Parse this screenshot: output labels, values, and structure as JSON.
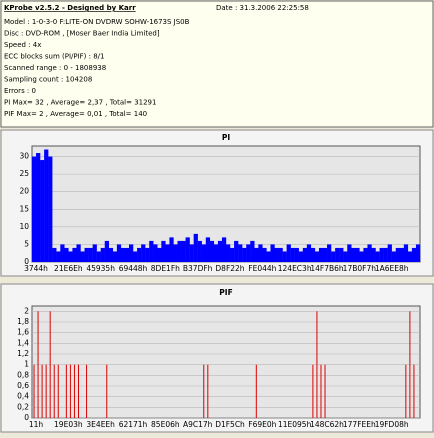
{
  "header": {
    "title": "KProbe v2.5.2 - Designed by Karr",
    "date": "Date : 31.3.2006 22:25:58",
    "lines": [
      "Model : 1-0-3-0 F:LITE-ON DVDRW SOHW-1673S JS0B",
      "Disc : DVD-ROM , [Moser Baer India Limited]",
      "Speed : 4x",
      "ECC blocks sum (PI/PIF) : 8/1",
      "Scanned range : 0 - 1808938",
      "Sampling count : 104208",
      "Errors : 0",
      "PI Max= 32 , Average= 2,37 , Total= 31291",
      "PIF Max= 2 , Average= 0,01 , Total= 140"
    ]
  },
  "chart_data": [
    {
      "type": "bar",
      "title": "PI",
      "color": "#0000ff",
      "grid": true,
      "ylim": [
        0,
        33
      ],
      "yticks": [
        0,
        5,
        10,
        15,
        20,
        25,
        30
      ],
      "categories": [
        "3744h",
        null,
        null,
        null,
        null,
        null,
        null,
        null,
        "21E6Eh",
        null,
        null,
        null,
        null,
        null,
        null,
        null,
        "45935h",
        null,
        null,
        null,
        null,
        null,
        null,
        null,
        "69448h",
        null,
        null,
        null,
        null,
        null,
        null,
        null,
        "8DE1Fh",
        null,
        null,
        null,
        null,
        null,
        null,
        null,
        "B37DFh",
        null,
        null,
        null,
        null,
        null,
        null,
        null,
        "D8F22h",
        null,
        null,
        null,
        null,
        null,
        null,
        null,
        "FE044h",
        null,
        null,
        null,
        null,
        null,
        null,
        null,
        "124EC3h",
        null,
        null,
        null,
        null,
        null,
        null,
        null,
        "14F7B6h",
        null,
        null,
        null,
        null,
        null,
        null,
        null,
        "17B0F7h",
        null,
        null,
        null,
        null,
        null,
        null,
        null,
        "1A6EE8h",
        null,
        null,
        null,
        null,
        null,
        null,
        null
      ],
      "values": [
        30,
        31,
        29,
        32,
        30,
        4,
        3,
        5,
        4,
        3,
        4,
        5,
        3,
        4,
        4,
        5,
        3,
        4,
        6,
        4,
        3,
        5,
        4,
        4,
        5,
        3,
        4,
        5,
        4,
        6,
        5,
        4,
        6,
        5,
        7,
        5,
        6,
        6,
        7,
        5,
        8,
        6,
        5,
        7,
        6,
        5,
        6,
        7,
        5,
        4,
        6,
        5,
        4,
        5,
        6,
        4,
        5,
        4,
        3,
        5,
        4,
        4,
        3,
        5,
        4,
        4,
        3,
        4,
        5,
        4,
        3,
        4,
        4,
        5,
        3,
        4,
        4,
        3,
        5,
        4,
        4,
        3,
        4,
        5,
        4,
        3,
        4,
        4,
        5,
        3,
        4,
        4,
        5,
        3,
        4,
        5
      ]
    },
    {
      "type": "bar",
      "title": "PIF",
      "color": "#dd0000",
      "grid": true,
      "ylim": [
        0,
        2.1
      ],
      "yticks": [
        0,
        {
          "value": 0.2,
          "label": "0,2"
        },
        {
          "value": 0.4,
          "label": "0,4"
        },
        {
          "value": 0.6,
          "label": "0,6"
        },
        {
          "value": 0.8,
          "label": "0,8"
        },
        1,
        {
          "value": 1.2,
          "label": "1,2"
        },
        {
          "value": 1.4,
          "label": "1,4"
        },
        {
          "value": 1.6,
          "label": "1,6"
        },
        {
          "value": 1.8,
          "label": "1,8"
        },
        2
      ],
      "categories": [
        "11h",
        null,
        null,
        null,
        null,
        null,
        null,
        null,
        "19E03h",
        null,
        null,
        null,
        null,
        null,
        null,
        null,
        "3E4EEh",
        null,
        null,
        null,
        null,
        null,
        null,
        null,
        "62171h",
        null,
        null,
        null,
        null,
        null,
        null,
        null,
        "85E06h",
        null,
        null,
        null,
        null,
        null,
        null,
        null,
        "A9C17h",
        null,
        null,
        null,
        null,
        null,
        null,
        null,
        "D1F5Ch",
        null,
        null,
        null,
        null,
        null,
        null,
        null,
        "F69E0h",
        null,
        null,
        null,
        null,
        null,
        null,
        null,
        "11E095h",
        null,
        null,
        null,
        null,
        null,
        null,
        null,
        "148C62h",
        null,
        null,
        null,
        null,
        null,
        null,
        null,
        "177FEEh",
        null,
        null,
        null,
        null,
        null,
        null,
        null,
        "19FD08h",
        null,
        null,
        null,
        null,
        null,
        null,
        null
      ],
      "values": [
        1,
        2,
        1,
        1,
        2,
        1,
        1,
        0,
        1,
        1,
        1,
        1,
        0,
        1,
        0,
        0,
        0,
        0,
        1,
        0,
        0,
        0,
        0,
        0,
        0,
        0,
        0,
        0,
        0,
        0,
        0,
        0,
        0,
        0,
        0,
        0,
        0,
        0,
        0,
        0,
        0,
        0,
        1,
        1,
        0,
        0,
        0,
        0,
        0,
        0,
        0,
        0,
        0,
        0,
        0,
        1,
        0,
        0,
        0,
        0,
        0,
        0,
        0,
        0,
        0,
        0,
        0,
        0,
        0,
        1,
        2,
        1,
        1,
        0,
        0,
        0,
        0,
        0,
        0,
        0,
        0,
        0,
        0,
        0,
        0,
        0,
        0,
        0,
        0,
        0,
        0,
        0,
        1,
        2,
        1,
        0
      ]
    }
  ]
}
